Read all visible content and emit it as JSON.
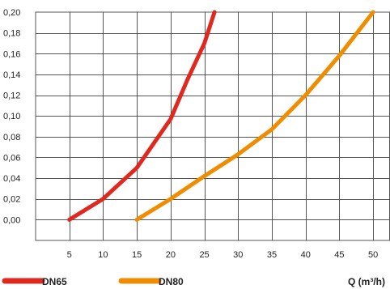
{
  "chart_data": {
    "type": "line",
    "xlim": [
      0,
      52.5
    ],
    "ylim": [
      -0.02,
      0.2
    ],
    "x_ticks": [
      "5",
      "10",
      "15",
      "20",
      "25",
      "30",
      "35",
      "40",
      "45",
      "50"
    ],
    "y_ticks": [
      "0,00",
      "0,02",
      "0,04",
      "0,06",
      "0,08",
      "0,10",
      "0,12",
      "0,14",
      "0,16",
      "0,18",
      "0,20"
    ],
    "grid": true,
    "xlabel": "Q (m³/h)",
    "legend_position": "bottom",
    "series": [
      {
        "name": "DN65",
        "color": "#e0281e",
        "points": [
          [
            5,
            0.0
          ],
          [
            10,
            0.02
          ],
          [
            15,
            0.05
          ],
          [
            20,
            0.097
          ],
          [
            22.5,
            0.135
          ],
          [
            25,
            0.17
          ],
          [
            26.5,
            0.2
          ]
        ]
      },
      {
        "name": "DN80",
        "color": "#f08c00",
        "points": [
          [
            15,
            0.0
          ],
          [
            20,
            0.02
          ],
          [
            25,
            0.042
          ],
          [
            30,
            0.063
          ],
          [
            35,
            0.087
          ],
          [
            40,
            0.12
          ],
          [
            45,
            0.158
          ],
          [
            50,
            0.2
          ]
        ]
      }
    ]
  }
}
